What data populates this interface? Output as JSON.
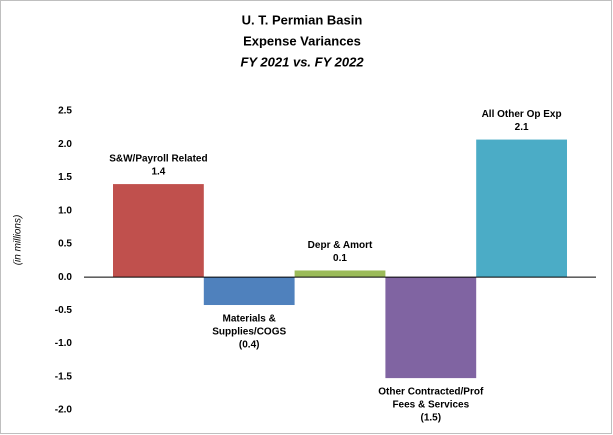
{
  "chart_data": {
    "type": "bar",
    "title": [
      "U. T. Permian Basin",
      "Expense Variances"
    ],
    "subtitle": "FY 2021 vs. FY 2022",
    "y_label": "(in  millions)",
    "categories": [
      [
        "S&W/Payroll Related"
      ],
      [
        "Materials &",
        "Supplies/COGS"
      ],
      [
        "Depr & Amort"
      ],
      [
        "Other Contracted/Prof",
        "Fees & Services"
      ],
      [
        "All Other Op Exp"
      ]
    ],
    "values": [
      1.4,
      -0.42,
      0.1,
      -1.52,
      2.07
    ],
    "value_labels": [
      "1.4",
      "(0.4)",
      "0.1",
      "(1.5)",
      "2.1"
    ],
    "colors": [
      "#c0504d",
      "#4f81bd",
      "#9bbb59",
      "#8064a2",
      "#4bacc6"
    ],
    "ylim": [
      -2.0,
      2.5
    ],
    "yticks": [
      2.5,
      {
        "value": 2.0,
        "label": "2.0"
      },
      1.5,
      {
        "value": 1.0,
        "label": "1.0"
      },
      0.5,
      {
        "value": 0,
        "label": "0.0"
      },
      -0.5,
      {
        "value": -1.0,
        "label": "-1.0"
      },
      -1.5,
      {
        "value": -2.0,
        "label": "-2.0"
      }
    ],
    "grid": false
  }
}
